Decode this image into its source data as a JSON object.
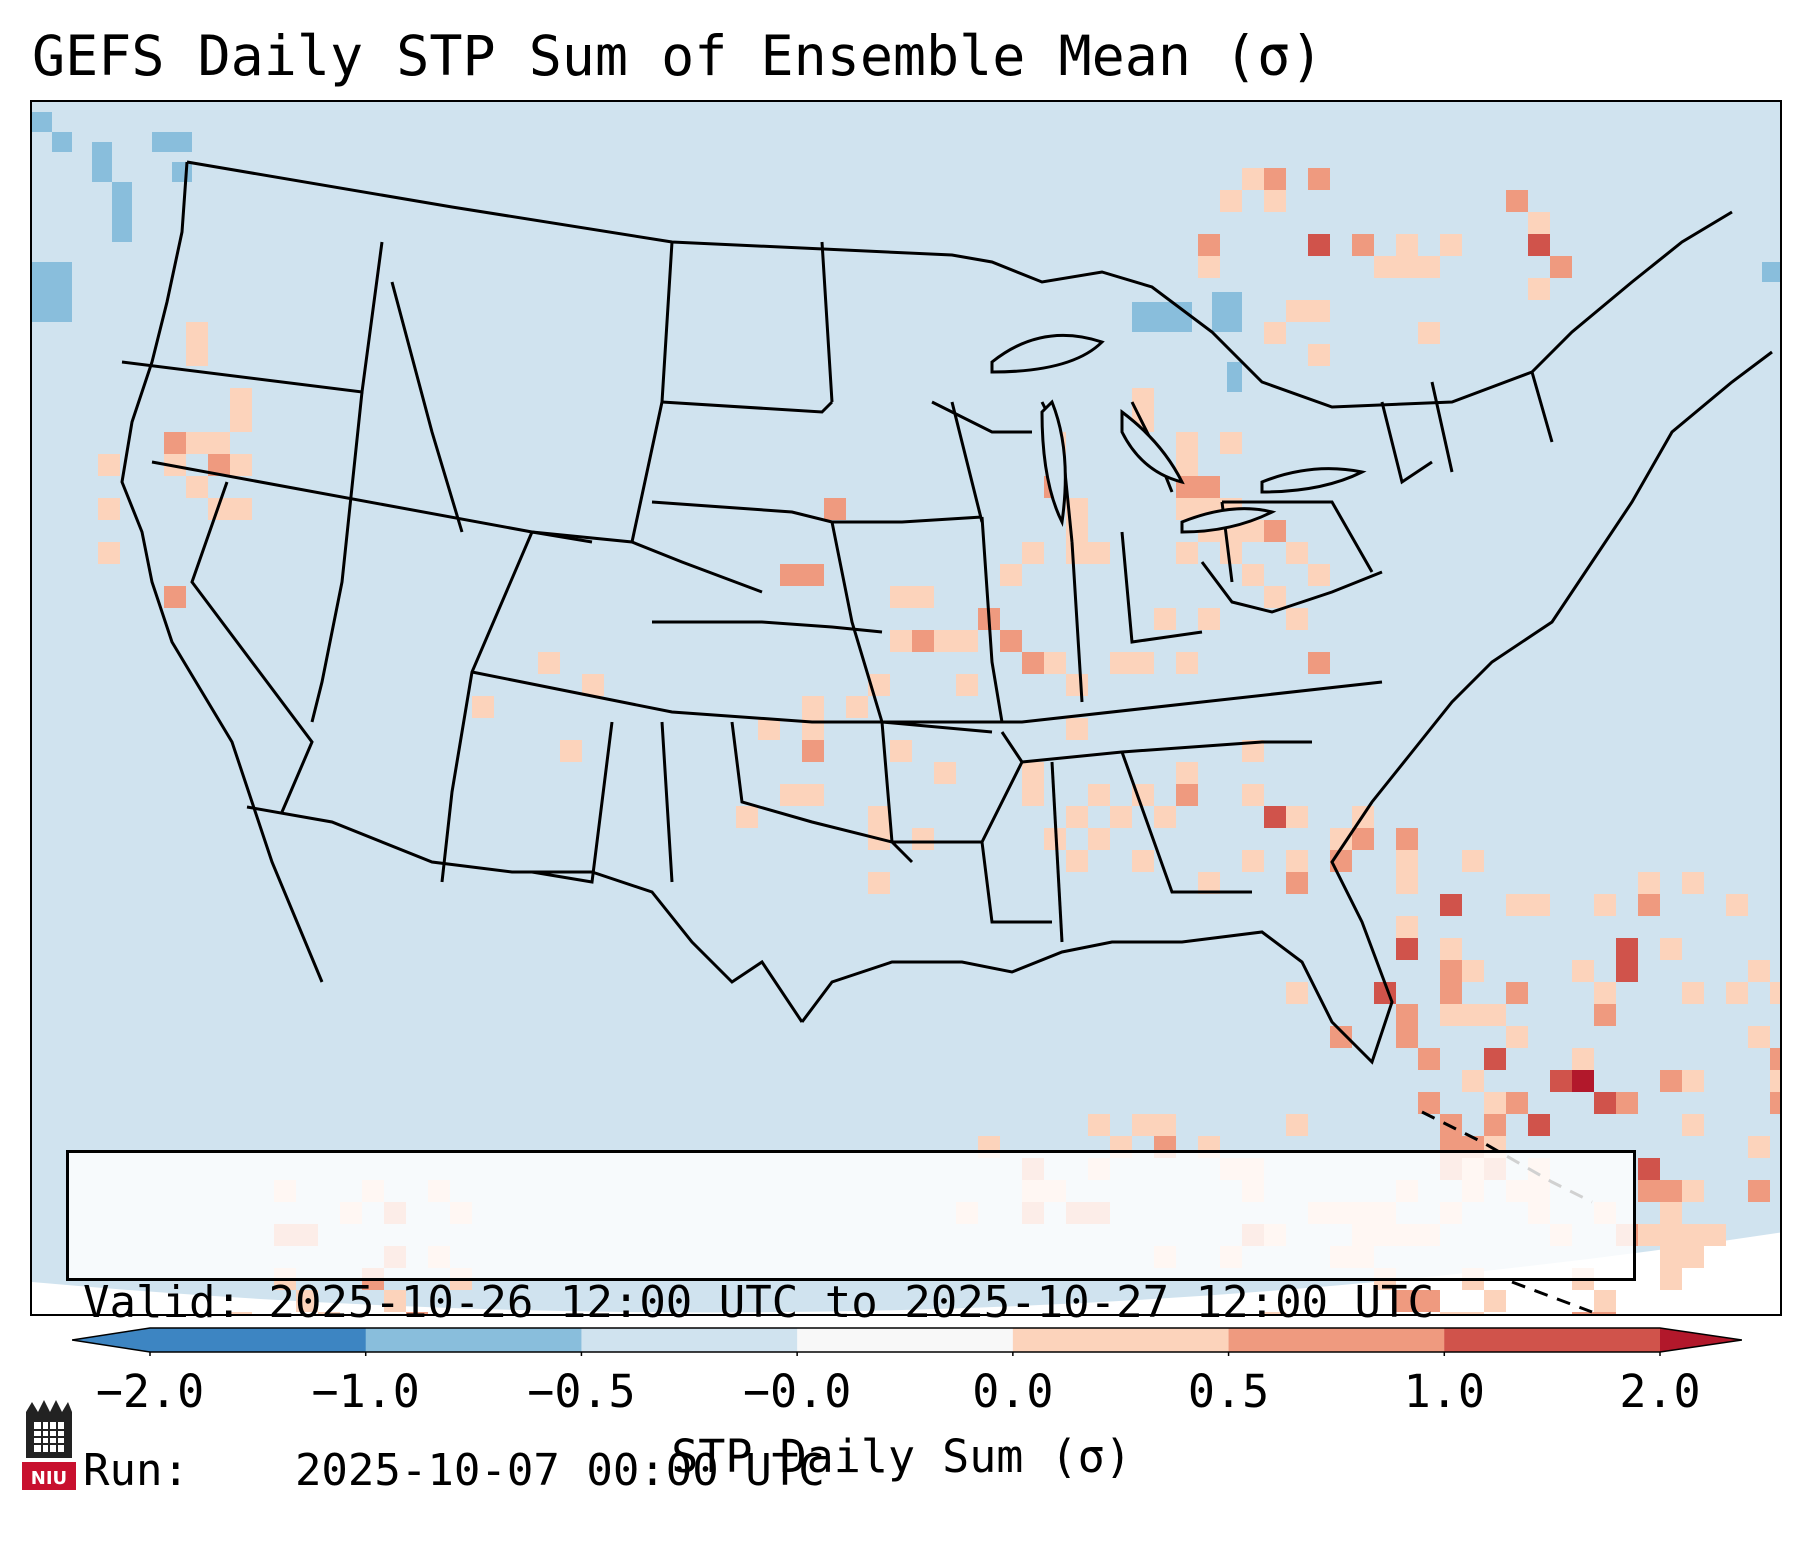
{
  "title": "GEFS Daily STP Sum of Ensemble Mean (σ)",
  "info": {
    "valid_label": "Valid:",
    "valid_value": "2025-10-26 12:00 UTC to 2025-10-27 12:00 UTC",
    "run_label": "Run:",
    "run_value": "2025-10-07 00:00 UTC"
  },
  "colorbar": {
    "label": "STP Daily Sum (σ)",
    "ticks": [
      "−2.0",
      "−1.0",
      "−0.5",
      "−0.0",
      "0.0",
      "0.5",
      "1.0",
      "2.0"
    ],
    "colors": [
      "#3d85c2",
      "#89bedc",
      "#d0e3ef",
      "#f8f8f8",
      "#fcd3bb",
      "#ef9a7f",
      "#d0534b"
    ],
    "extend_low_color": "#3d85c2",
    "extend_high_color": "#b2182b"
  },
  "map": {
    "ocean_color": "#d0e3ef",
    "outline_color": "#000000"
  },
  "logo": {
    "text": "NIU",
    "color": "#c8102e"
  }
}
